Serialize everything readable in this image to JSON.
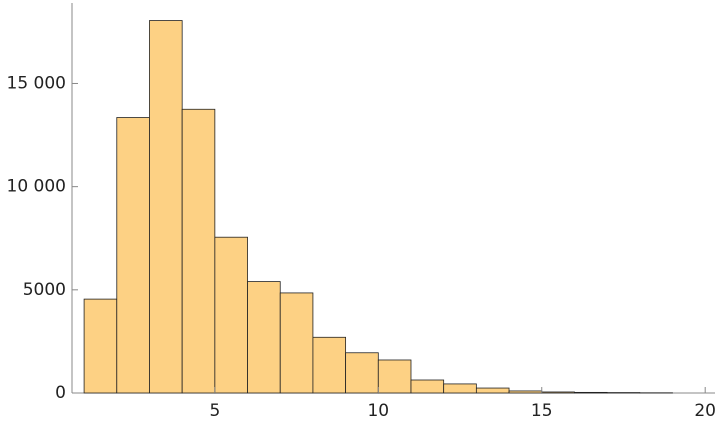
{
  "chart_data": {
    "type": "histogram",
    "bins": [
      1,
      2,
      3,
      4,
      5,
      6,
      7,
      8,
      9,
      10,
      11,
      12,
      13,
      14,
      15,
      16,
      17,
      18,
      19
    ],
    "values": [
      4550,
      13350,
      18050,
      13750,
      7550,
      5400,
      4850,
      2700,
      1950,
      1600,
      630,
      440,
      240,
      100,
      50,
      30,
      20,
      10
    ],
    "color": "#fdd184",
    "xlim": [
      0.63,
      20.3
    ],
    "ylim": [
      0,
      18900
    ],
    "xticks": [
      5,
      10,
      15,
      20
    ],
    "yticks": [
      0,
      5000,
      {
        "value": 10000,
        "label": "10 000"
      },
      {
        "value": 15000,
        "label": "15 000"
      }
    ]
  }
}
